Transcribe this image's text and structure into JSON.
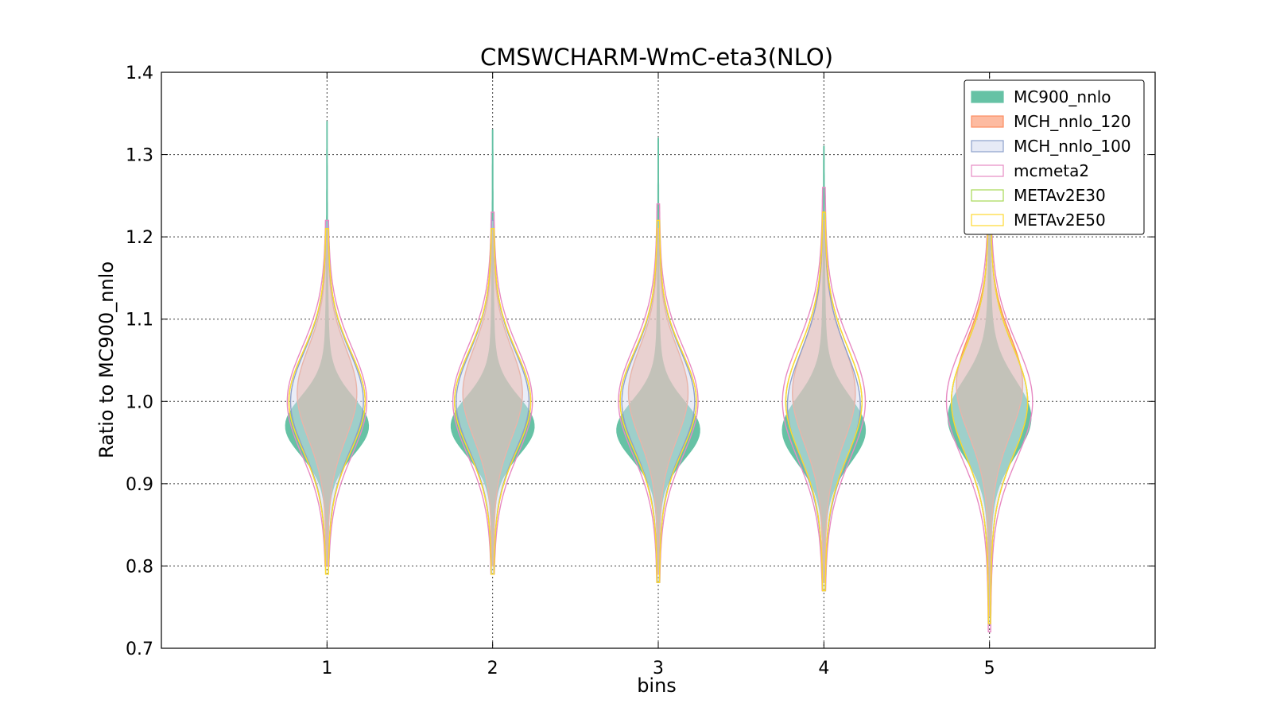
{
  "chart_data": {
    "type": "violin",
    "title": "CMSWCHARM-WmC-eta3(NLO)",
    "xlabel": "bins",
    "ylabel": "Ratio to MC900_nnlo",
    "categories": [
      "1",
      "2",
      "3",
      "4",
      "5"
    ],
    "ylim": [
      0.7,
      1.4
    ],
    "yticks": [
      "0.7",
      "0.8",
      "0.9",
      "1.0",
      "1.1",
      "1.2",
      "1.3",
      "1.4"
    ],
    "grid": true,
    "legend_position": "top-right",
    "series": [
      {
        "name": "MC900_nnlo",
        "fill": "#66c2a5",
        "stroke": "#66c2a5",
        "fill_opacity": 1.0,
        "range": [
          [
            0.8,
            1.34
          ],
          [
            0.8,
            1.33
          ],
          [
            0.79,
            1.32
          ],
          [
            0.78,
            1.31
          ],
          [
            0.74,
            1.23
          ]
        ],
        "center": [
          0.97,
          0.97,
          0.965,
          0.965,
          0.98
        ],
        "spread": [
          0.035,
          0.035,
          0.035,
          0.04,
          0.045
        ],
        "width": [
          0.5,
          0.5,
          0.5,
          0.5,
          0.5
        ]
      },
      {
        "name": "MCH_nnlo_120",
        "fill": "#fc8d62",
        "stroke": "#fc8d62",
        "fill_opacity": 0.5,
        "range": [
          [
            0.8,
            1.21
          ],
          [
            0.8,
            1.21
          ],
          [
            0.79,
            1.21
          ],
          [
            0.78,
            1.22
          ],
          [
            0.74,
            1.22
          ]
        ],
        "center": [
          1.01,
          1.01,
          1.01,
          1.01,
          1.02
        ],
        "spread": [
          0.055,
          0.055,
          0.055,
          0.06,
          0.06
        ],
        "width": [
          0.36,
          0.36,
          0.36,
          0.38,
          0.4
        ]
      },
      {
        "name": "MCH_nnlo_100",
        "fill": "#d5dcf0",
        "stroke": "#8da0cb",
        "fill_opacity": 0.5,
        "range": [
          [
            0.8,
            1.22
          ],
          [
            0.79,
            1.22
          ],
          [
            0.78,
            1.22
          ],
          [
            0.77,
            1.23
          ],
          [
            0.73,
            1.23
          ]
        ],
        "center": [
          1.0,
          1.0,
          1.0,
          0.995,
          1.0
        ],
        "spread": [
          0.06,
          0.06,
          0.06,
          0.065,
          0.065
        ],
        "width": [
          0.44,
          0.44,
          0.44,
          0.44,
          0.46
        ]
      },
      {
        "name": "mcmeta2",
        "fill": "none",
        "stroke": "#e78ac3",
        "fill_opacity": 0,
        "range": [
          [
            0.8,
            1.22
          ],
          [
            0.79,
            1.23
          ],
          [
            0.78,
            1.24
          ],
          [
            0.77,
            1.26
          ],
          [
            0.72,
            1.23
          ]
        ],
        "center": [
          1.0,
          1.0,
          1.0,
          1.0,
          1.0
        ],
        "spread": [
          0.065,
          0.065,
          0.065,
          0.07,
          0.07
        ],
        "width": [
          0.48,
          0.48,
          0.48,
          0.5,
          0.52
        ]
      },
      {
        "name": "METAv2E30",
        "fill": "none",
        "stroke": "#a6d854",
        "fill_opacity": 0,
        "range": [
          [
            0.79,
            1.21
          ],
          [
            0.79,
            1.21
          ],
          [
            0.78,
            1.22
          ],
          [
            0.77,
            1.23
          ],
          [
            0.73,
            1.24
          ]
        ],
        "center": [
          1.0,
          1.0,
          1.0,
          1.0,
          1.0
        ],
        "spread": [
          0.06,
          0.06,
          0.06,
          0.065,
          0.065
        ],
        "width": [
          0.46,
          0.46,
          0.46,
          0.46,
          0.46
        ]
      },
      {
        "name": "METAv2E50",
        "fill": "none",
        "stroke": "#ffd92f",
        "fill_opacity": 0,
        "range": [
          [
            0.79,
            1.21
          ],
          [
            0.79,
            1.21
          ],
          [
            0.78,
            1.22
          ],
          [
            0.77,
            1.23
          ],
          [
            0.73,
            1.24
          ]
        ],
        "center": [
          1.0,
          1.0,
          1.0,
          1.0,
          1.0
        ],
        "spread": [
          0.06,
          0.06,
          0.06,
          0.065,
          0.065
        ],
        "width": [
          0.46,
          0.46,
          0.46,
          0.46,
          0.46
        ]
      }
    ]
  }
}
